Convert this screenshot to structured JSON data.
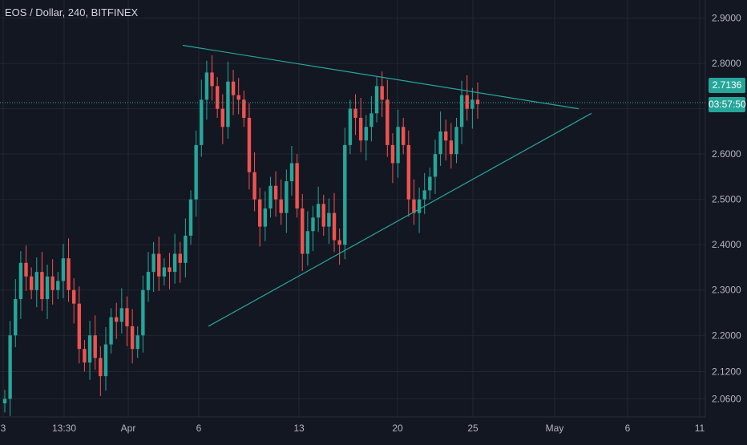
{
  "header": {
    "title": "EOS / Dollar, 240, BITFINEX"
  },
  "price_badge": {
    "price": "2.7136",
    "countdown": "03:57:50"
  },
  "colors": {
    "background": "#131722",
    "grid": "#232733",
    "up": "#26a69a",
    "down": "#ef5350",
    "trendline": "#26a69a",
    "axis_text": "#b2b5be"
  },
  "chart_data": {
    "type": "candlestick",
    "title": "EOS / Dollar, 240, BITFINEX",
    "ylim": [
      2.02,
      2.94
    ],
    "y_ticks": [
      "2.9000",
      "2.8000",
      "2.7000",
      "2.6000",
      "2.5000",
      "2.4000",
      "2.3000",
      "2.2000",
      "2.1200",
      "2.0600"
    ],
    "x_ticks": [
      "3",
      "13:30",
      "Apr",
      "6",
      "13",
      "20",
      "25",
      "May",
      "6",
      "11"
    ],
    "current_price": 2.7136,
    "candle_close_path": [
      2.06,
      2.2,
      2.28,
      2.36,
      2.33,
      2.3,
      2.34,
      2.28,
      2.33,
      2.3,
      2.32,
      2.37,
      2.3,
      2.27,
      2.17,
      2.14,
      2.2,
      2.15,
      2.11,
      2.18,
      2.24,
      2.23,
      2.26,
      2.22,
      2.17,
      2.2,
      2.3,
      2.34,
      2.38,
      2.33,
      2.35,
      2.34,
      2.38,
      2.36,
      2.42,
      2.5,
      2.62,
      2.72,
      2.78,
      2.75,
      2.7,
      2.66,
      2.76,
      2.73,
      2.72,
      2.68,
      2.56,
      2.5,
      2.44,
      2.48,
      2.53,
      2.5,
      2.47,
      2.54,
      2.58,
      2.48,
      2.38,
      2.43,
      2.46,
      2.49,
      2.44,
      2.47,
      2.41,
      2.4,
      2.62,
      2.7,
      2.68,
      2.63,
      2.66,
      2.69,
      2.75,
      2.72,
      2.62,
      2.58,
      2.66,
      2.62,
      2.5,
      2.47,
      2.5,
      2.52,
      2.55,
      2.6,
      2.65,
      2.63,
      2.6,
      2.66,
      2.73,
      2.7,
      2.72,
      2.71
    ],
    "trendlines": [
      {
        "name": "",
        "x": [
          "Apr 5",
          "May 2"
        ],
        "y": [
          2.84,
          2.7
        ]
      },
      {
        "name": "",
        "x": [
          "Apr 6",
          "May 3"
        ],
        "y": [
          2.22,
          2.69
        ]
      }
    ]
  }
}
